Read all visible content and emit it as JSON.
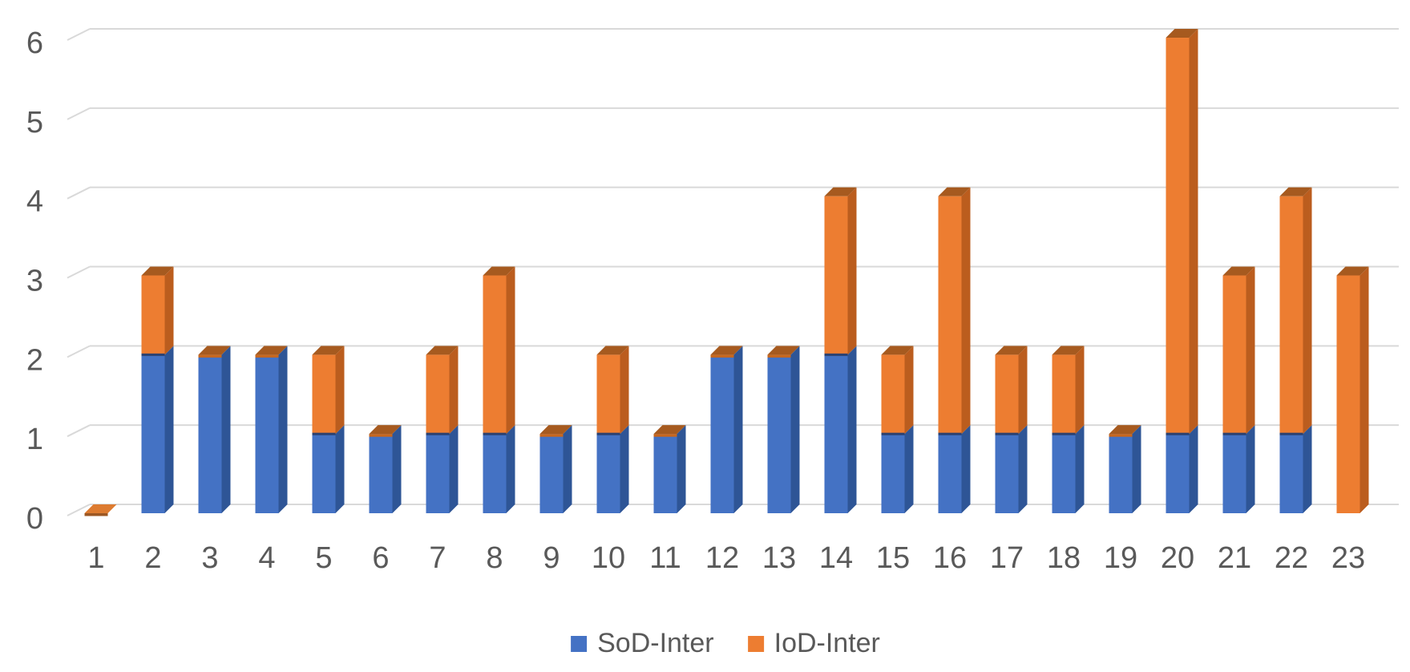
{
  "chart_data": {
    "type": "bar",
    "subtype": "3d-stacked-column",
    "title": "",
    "xlabel": "",
    "ylabel": "",
    "categories": [
      "1",
      "2",
      "3",
      "4",
      "5",
      "6",
      "7",
      "8",
      "9",
      "10",
      "11",
      "12",
      "13",
      "14",
      "15",
      "16",
      "17",
      "18",
      "19",
      "20",
      "21",
      "22",
      "23"
    ],
    "series": [
      {
        "name": "SoD-Inter",
        "color": "#4472C4",
        "values": [
          0,
          2,
          2,
          2,
          1,
          1,
          1,
          1,
          1,
          1,
          1,
          2,
          2,
          2,
          1,
          1,
          1,
          1,
          1,
          1,
          1,
          1,
          0
        ]
      },
      {
        "name": "IoD-Inter",
        "color": "#ED7D31",
        "values": [
          0,
          1,
          0,
          0,
          1,
          0,
          1,
          2,
          0,
          1,
          0,
          0,
          0,
          2,
          1,
          3,
          1,
          1,
          0,
          5,
          2,
          3,
          3
        ]
      }
    ],
    "stacked_totals": [
      0,
      3,
      2,
      2,
      2,
      1,
      2,
      3,
      1,
      2,
      1,
      2,
      2,
      4,
      2,
      4,
      2,
      2,
      1,
      6,
      3,
      4,
      3
    ],
    "ylim": [
      0,
      6
    ],
    "yticks": [
      0,
      1,
      2,
      3,
      4,
      5,
      6
    ],
    "grid": true,
    "legend_position": "bottom-center"
  },
  "axes": {
    "y_tick_labels": [
      "0",
      "1",
      "2",
      "3",
      "4",
      "5",
      "6"
    ],
    "x_tick_labels": [
      "1",
      "2",
      "3",
      "4",
      "5",
      "6",
      "7",
      "8",
      "9",
      "10",
      "11",
      "12",
      "13",
      "14",
      "15",
      "16",
      "17",
      "18",
      "19",
      "20",
      "21",
      "22",
      "23"
    ]
  },
  "legend": {
    "items": [
      {
        "label": "SoD-Inter",
        "color": "#4472C4"
      },
      {
        "label": "IoD-Inter",
        "color": "#ED7D31"
      }
    ]
  },
  "colors": {
    "background": "#FFFFFF",
    "gridline": "#D9D9D9",
    "tick_text": "#595959",
    "blue_front": "#4472C4",
    "blue_side": "#2E5596",
    "blue_top": "#2B4170",
    "orange_front": "#ED7D31",
    "orange_side": "#BB5D1E",
    "orange_top": "#A65A1F",
    "orange_cap_edge": "#C8671D",
    "zero_bar_top": "#DD7B30",
    "zero_bar_edge": "#9C5723"
  }
}
